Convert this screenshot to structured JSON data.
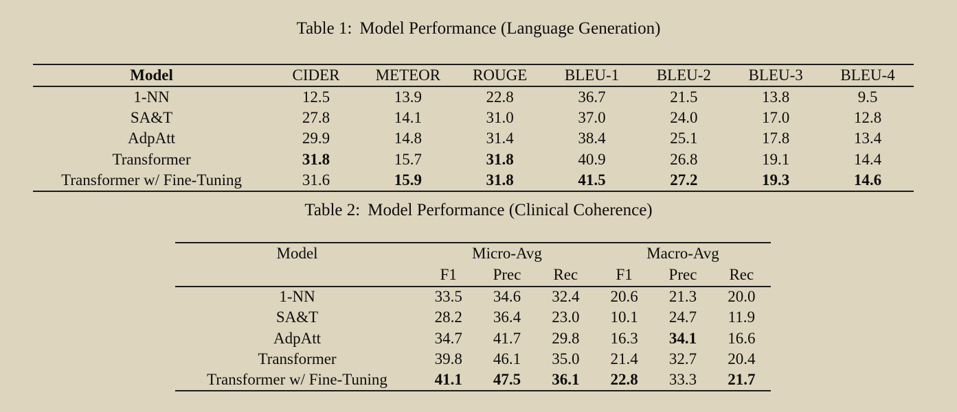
{
  "page": {
    "background_color": "#ddd5be",
    "rule_color": "#1c1c1c",
    "text_color": "#0d0d0d"
  },
  "table1": {
    "caption": {
      "label": "Table 1:",
      "title": "Model Performance (Language Generation)"
    },
    "columns": [
      "Model",
      "CIDER",
      "METEOR",
      "ROUGE",
      "BLEU-1",
      "BLEU-2",
      "BLEU-3",
      "BLEU-4"
    ],
    "rows": [
      {
        "model": "1-NN",
        "values": [
          "12.5",
          "13.9",
          "22.8",
          "36.7",
          "21.5",
          "13.8",
          "9.5"
        ],
        "bold": [
          0,
          0,
          0,
          0,
          0,
          0,
          0
        ]
      },
      {
        "model": "SA&T",
        "values": [
          "27.8",
          "14.1",
          "31.0",
          "37.0",
          "24.0",
          "17.0",
          "12.8"
        ],
        "bold": [
          0,
          0,
          0,
          0,
          0,
          0,
          0
        ]
      },
      {
        "model": "AdpAtt",
        "values": [
          "29.9",
          "14.8",
          "31.4",
          "38.4",
          "25.1",
          "17.8",
          "13.4"
        ],
        "bold": [
          0,
          0,
          0,
          0,
          0,
          0,
          0
        ]
      },
      {
        "model": "Transformer",
        "values": [
          "31.8",
          "15.7",
          "31.8",
          "40.9",
          "26.8",
          "19.1",
          "14.4"
        ],
        "bold": [
          1,
          0,
          1,
          0,
          0,
          0,
          0
        ]
      },
      {
        "model": "Transformer w/ Fine-Tuning",
        "values": [
          "31.6",
          "15.9",
          "31.8",
          "41.5",
          "27.2",
          "19.3",
          "14.6"
        ],
        "bold": [
          0,
          1,
          1,
          1,
          1,
          1,
          1
        ]
      }
    ]
  },
  "table2": {
    "caption": {
      "label": "Table 2:",
      "title": "Model Performance (Clinical Coherence)"
    },
    "header": {
      "model": "Model",
      "groups": [
        {
          "label": "Micro-Avg"
        },
        {
          "label": "Macro-Avg"
        }
      ],
      "sub": [
        "F1",
        "Prec",
        "Rec",
        "F1",
        "Prec",
        "Rec"
      ]
    },
    "rows": [
      {
        "model": "1-NN",
        "values": [
          "33.5",
          "34.6",
          "32.4",
          "20.6",
          "21.3",
          "20.0"
        ],
        "bold": [
          0,
          0,
          0,
          0,
          0,
          0
        ]
      },
      {
        "model": "SA&T",
        "values": [
          "28.2",
          "36.4",
          "23.0",
          "10.1",
          "24.7",
          "11.9"
        ],
        "bold": [
          0,
          0,
          0,
          0,
          0,
          0
        ]
      },
      {
        "model": "AdpAtt",
        "values": [
          "34.7",
          "41.7",
          "29.8",
          "16.3",
          "34.1",
          "16.6"
        ],
        "bold": [
          0,
          0,
          0,
          0,
          1,
          0
        ]
      },
      {
        "model": "Transformer",
        "values": [
          "39.8",
          "46.1",
          "35.0",
          "21.4",
          "32.7",
          "20.4"
        ],
        "bold": [
          0,
          0,
          0,
          0,
          0,
          0
        ]
      },
      {
        "model": "Transformer w/ Fine-Tuning",
        "values": [
          "41.1",
          "47.5",
          "36.1",
          "22.8",
          "33.3",
          "21.7"
        ],
        "bold": [
          1,
          1,
          1,
          1,
          0,
          1
        ]
      }
    ]
  }
}
